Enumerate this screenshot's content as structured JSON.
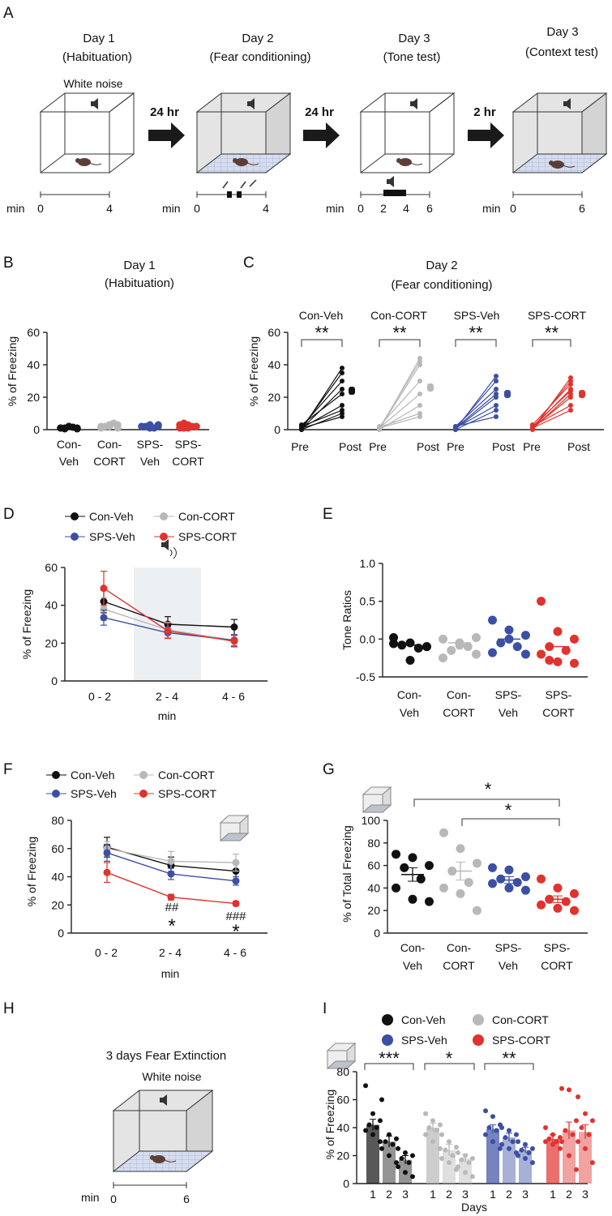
{
  "colors": {
    "con_veh": "#111111",
    "con_cort": "#b8b8b8",
    "sps_veh": "#3b4fa3",
    "sps_cort": "#e0332e"
  },
  "panel_a": {
    "letter": "A",
    "stages": [
      {
        "day": "Day 1",
        "phase": "(Habituation)"
      },
      {
        "day": "Day 2",
        "phase": "(Fear conditioning)"
      },
      {
        "day": "Day 3",
        "phase": "(Tone test)"
      },
      {
        "day": "Day 3",
        "phase": "(Context test)"
      }
    ],
    "white_noise": "White noise",
    "intervals": [
      "24 hr",
      "24 hr",
      "2 hr"
    ],
    "time_unit": "min",
    "timelines": [
      [
        "0",
        "4"
      ],
      [
        "0",
        "4"
      ],
      [
        "0",
        "2",
        "4",
        "6"
      ],
      [
        "0",
        "6"
      ]
    ]
  },
  "legend": {
    "con_veh": "Con-Veh",
    "con_cort": "Con-CORT",
    "sps_veh": "SPS-Veh",
    "sps_cort": "SPS-CORT"
  },
  "group_labels": [
    {
      "top": "Con-",
      "bottom": "Veh"
    },
    {
      "top": "Con-",
      "bottom": "CORT"
    },
    {
      "top": "SPS-",
      "bottom": "Veh"
    },
    {
      "top": "SPS-",
      "bottom": "CORT"
    }
  ],
  "panel_b": {
    "letter": "B",
    "title": "Day 1",
    "subtitle": "(Habituation)",
    "ylabel": "% of Freezing",
    "yticks": [
      "0",
      "20",
      "40",
      "60"
    ]
  },
  "panel_c": {
    "letter": "C",
    "title": "Day 2",
    "subtitle": "(Fear conditioning)",
    "ylabel": "% of Freezing",
    "yticks": [
      "0",
      "20",
      "40",
      "60"
    ],
    "xticks": [
      "Pre",
      "Post"
    ],
    "sig": "**"
  },
  "panel_d": {
    "letter": "D",
    "ylabel": "% of Freezing",
    "xlabel": "min",
    "yticks": [
      "0",
      "20",
      "40",
      "60"
    ],
    "xticks": [
      "0 - 2",
      "2 - 4",
      "4 - 6"
    ]
  },
  "panel_e": {
    "letter": "E",
    "ylabel": "Tone Ratios",
    "yticks": [
      "-0.5",
      "0.0",
      "0.5",
      "1.0"
    ]
  },
  "panel_f": {
    "letter": "F",
    "ylabel": "% of Freezing",
    "xlabel": "min",
    "yticks": [
      "0",
      "20",
      "40",
      "60",
      "80"
    ],
    "xticks": [
      "0 - 2",
      "2 - 4",
      "4 - 6"
    ],
    "hash_marks": [
      "##",
      "###"
    ],
    "star": "*"
  },
  "panel_g": {
    "letter": "G",
    "ylabel": "% of Total Freezing",
    "yticks": [
      "0",
      "20",
      "40",
      "60",
      "80",
      "100"
    ],
    "sig": "*"
  },
  "panel_h": {
    "letter": "H",
    "title": "3 days Fear Extinction",
    "white_noise": "White noise",
    "time_unit": "min",
    "ticks": [
      "0",
      "6"
    ]
  },
  "panel_i": {
    "letter": "I",
    "ylabel": "% of Freezing",
    "xlabel": "Days",
    "yticks": [
      "0",
      "20",
      "40",
      "60",
      "80"
    ],
    "xticks": [
      "1",
      "2",
      "3"
    ],
    "sig": [
      "***",
      "*",
      "**"
    ]
  },
  "chart_data": [
    {
      "id": "B",
      "type": "scatter",
      "title": "Day 1 (Habituation)",
      "ylabel": "% of Freezing",
      "ylim": [
        0,
        60
      ],
      "categories": [
        "Con-Veh",
        "Con-CORT",
        "SPS-Veh",
        "SPS-CORT"
      ],
      "series": [
        {
          "name": "Con-Veh",
          "values": [
            1,
            2,
            1,
            0.5,
            1.5,
            1,
            2,
            0.5,
            1
          ]
        },
        {
          "name": "Con-CORT",
          "values": [
            2,
            3,
            1,
            2,
            4,
            1,
            2,
            3
          ]
        },
        {
          "name": "SPS-Veh",
          "values": [
            2,
            1,
            3,
            2,
            1,
            2,
            3,
            2
          ]
        },
        {
          "name": "SPS-CORT",
          "values": [
            3,
            1,
            2,
            4,
            2,
            1,
            3,
            2,
            1
          ]
        }
      ]
    },
    {
      "id": "C",
      "type": "line",
      "title": "Day 2 (Fear conditioning)",
      "ylabel": "% of Freezing",
      "ylim": [
        0,
        60
      ],
      "x": [
        "Pre",
        "Post"
      ],
      "series": [
        {
          "name": "Con-Veh",
          "pre": [
            0,
            1,
            2,
            0.5,
            3,
            1,
            2,
            0,
            1
          ],
          "post": [
            38,
            35,
            30,
            25,
            22,
            15,
            12,
            10,
            8
          ],
          "post_mean": 24
        },
        {
          "name": "Con-CORT",
          "pre": [
            0,
            1,
            0.5,
            2,
            1,
            0,
            1.5,
            1
          ],
          "post": [
            44,
            42,
            40,
            30,
            22,
            15,
            10,
            8
          ],
          "post_mean": 26
        },
        {
          "name": "SPS-Veh",
          "pre": [
            0,
            1,
            2,
            1,
            0.5,
            1,
            0,
            2
          ],
          "post": [
            33,
            30,
            25,
            22,
            20,
            15,
            12,
            8
          ],
          "post_mean": 22
        },
        {
          "name": "SPS-CORT",
          "pre": [
            0,
            1,
            3,
            1,
            2,
            0.5,
            1,
            2,
            1
          ],
          "post": [
            32,
            30,
            28,
            25,
            24,
            22,
            20,
            15,
            12
          ],
          "post_mean": 22
        }
      ],
      "significance": [
        "**",
        "**",
        "**",
        "**"
      ]
    },
    {
      "id": "D",
      "type": "line",
      "ylabel": "% of Freezing",
      "xlabel": "min",
      "ylim": [
        0,
        60
      ],
      "x": [
        "0 - 2",
        "2 - 4",
        "4 - 6"
      ],
      "series": [
        {
          "name": "Con-Veh",
          "values": [
            42,
            30,
            28.5
          ],
          "err": [
            6,
            4,
            4
          ]
        },
        {
          "name": "Con-CORT",
          "values": [
            38,
            27,
            21.5
          ],
          "err": [
            6,
            4,
            3
          ]
        },
        {
          "name": "SPS-Veh",
          "values": [
            33.5,
            25.5,
            21.5
          ],
          "err": [
            4,
            3,
            3
          ]
        },
        {
          "name": "SPS-CORT",
          "values": [
            49,
            26.5,
            21
          ],
          "err": [
            9,
            4,
            3
          ]
        }
      ],
      "shaded_interval": "2 - 4"
    },
    {
      "id": "E",
      "type": "scatter",
      "ylabel": "Tone Ratios",
      "ylim": [
        -0.5,
        1.0
      ],
      "categories": [
        "Con-Veh",
        "Con-CORT",
        "SPS-Veh",
        "SPS-CORT"
      ],
      "series": [
        {
          "name": "Con-Veh",
          "values": [
            0.02,
            -0.05,
            -0.1,
            -0.08,
            -0.12,
            -0.06,
            -0.28,
            -0.1
          ],
          "mean": -0.08
        },
        {
          "name": "Con-CORT",
          "values": [
            0.0,
            -0.05,
            0.02,
            -0.15,
            -0.1,
            -0.25,
            -0.08,
            -0.2
          ],
          "mean": -0.05
        },
        {
          "name": "SPS-Veh",
          "values": [
            0.25,
            0.12,
            0.05,
            -0.05,
            -0.1,
            -0.18,
            0.0,
            -0.2
          ],
          "mean": 0.0
        },
        {
          "name": "SPS-CORT",
          "values": [
            0.5,
            0.1,
            0.0,
            -0.1,
            -0.15,
            -0.2,
            -0.3,
            -0.32,
            -0.28
          ],
          "mean": -0.1
        }
      ]
    },
    {
      "id": "F",
      "type": "line",
      "ylabel": "% of Freezing",
      "xlabel": "min",
      "ylim": [
        0,
        80
      ],
      "x": [
        "0 - 2",
        "2 - 4",
        "4 - 6"
      ],
      "series": [
        {
          "name": "Con-Veh",
          "values": [
            61,
            48,
            44
          ],
          "err": [
            7,
            6,
            6
          ]
        },
        {
          "name": "Con-CORT",
          "values": [
            60,
            51,
            50
          ],
          "err": [
            5,
            7,
            6
          ]
        },
        {
          "name": "SPS-Veh",
          "values": [
            57,
            42,
            37
          ],
          "err": [
            6,
            4,
            3
          ]
        },
        {
          "name": "SPS-CORT",
          "values": [
            43,
            25.5,
            21
          ],
          "err": [
            7,
            2,
            1.5
          ]
        }
      ],
      "annotations": [
        {
          "x": "2 - 4",
          "text": "##"
        },
        {
          "x": "2 - 4",
          "text": "*"
        },
        {
          "x": "4 - 6",
          "text": "###"
        },
        {
          "x": "4 - 6",
          "text": "*"
        }
      ]
    },
    {
      "id": "G",
      "type": "scatter",
      "ylabel": "% of Total Freezing",
      "ylim": [
        0,
        100
      ],
      "categories": [
        "Con-Veh",
        "Con-CORT",
        "SPS-Veh",
        "SPS-CORT"
      ],
      "series": [
        {
          "name": "Con-Veh",
          "values": [
            70,
            67,
            60,
            58,
            48,
            40,
            30,
            28
          ],
          "mean": 52,
          "sem": 6
        },
        {
          "name": "Con-CORT",
          "values": [
            89,
            75,
            62,
            55,
            45,
            40,
            35,
            20
          ],
          "mean": 55,
          "sem": 8
        },
        {
          "name": "SPS-Veh",
          "values": [
            58,
            56,
            50,
            48,
            45,
            44,
            40,
            38
          ],
          "mean": 47,
          "sem": 3
        },
        {
          "name": "SPS-CORT",
          "values": [
            48,
            40,
            35,
            30,
            28,
            25,
            22,
            20
          ],
          "mean": 30,
          "sem": 3
        }
      ],
      "significance": [
        {
          "pair": [
            "Con-Veh",
            "SPS-CORT"
          ],
          "text": "*"
        },
        {
          "pair": [
            "Con-CORT",
            "SPS-CORT"
          ],
          "text": "*"
        }
      ]
    },
    {
      "id": "I",
      "type": "bar",
      "ylabel": "% of Freezing",
      "xlabel": "Days",
      "ylim": [
        0,
        80
      ],
      "categories": [
        "1",
        "2",
        "3"
      ],
      "series": [
        {
          "name": "Con-Veh",
          "values": [
            42,
            30,
            17
          ],
          "err": [
            4,
            4,
            3
          ],
          "points": [
            [
              70,
              50,
              45,
              42,
              40,
              38,
              35,
              30
            ],
            [
              60,
              35,
              32,
              30,
              28,
              25,
              20,
              15
            ],
            [
              25,
              22,
              20,
              18,
              15,
              12,
              8,
              5
            ]
          ]
        },
        {
          "name": "Con-CORT",
          "values": [
            40,
            24,
            18
          ],
          "err": [
            3,
            4,
            3
          ],
          "points": [
            [
              50,
              45,
              42,
              40,
              38,
              35,
              30,
              25
            ],
            [
              35,
              30,
              26,
              24,
              20,
              18,
              15,
              10
            ],
            [
              22,
              20,
              18,
              17,
              15,
              12,
              8,
              5
            ]
          ]
        },
        {
          "name": "SPS-Veh",
          "values": [
            39,
            33,
            24
          ],
          "err": [
            3,
            3,
            2
          ],
          "points": [
            [
              52,
              48,
              42,
              40,
              38,
              35,
              30,
              25
            ],
            [
              40,
              38,
              35,
              33,
              30,
              28,
              25,
              22
            ],
            [
              30,
              28,
              25,
              24,
              22,
              20,
              18,
              15
            ]
          ]
        },
        {
          "name": "SPS-CORT",
          "values": [
            32,
            38,
            37
          ],
          "err": [
            3,
            6,
            5
          ],
          "points": [
            [
              40,
              35,
              33,
              32,
              30,
              30,
              28,
              25
            ],
            [
              68,
              67,
              45,
              38,
              35,
              30,
              20,
              10
            ],
            [
              62,
              50,
              45,
              40,
              35,
              30,
              25,
              15
            ]
          ]
        }
      ],
      "significance": [
        "***",
        "*",
        "**"
      ]
    }
  ]
}
